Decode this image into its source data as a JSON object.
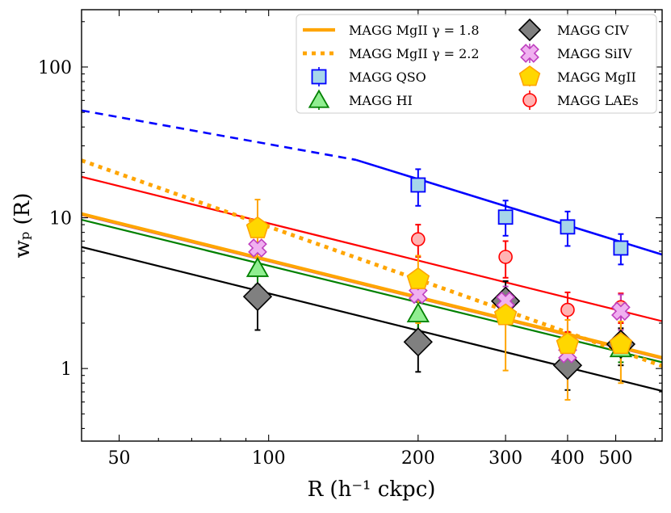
{
  "chart_data": {
    "type": "scatter",
    "xscale": "log",
    "yscale": "log",
    "xlim": [
      42,
      620
    ],
    "ylim": [
      0.33,
      240
    ],
    "xlabel": "R (h⁻¹ ckpc)",
    "ylabel": "wₚ (R)",
    "xticks": [
      {
        "value": 50,
        "label": "50"
      },
      {
        "value": 100,
        "label": "100"
      },
      {
        "value": 200,
        "label": "200"
      },
      {
        "value": 300,
        "label": "300"
      },
      {
        "value": 400,
        "label": "400"
      },
      {
        "value": 500,
        "label": "500"
      }
    ],
    "yticks": [
      {
        "value": 1,
        "label": "1"
      },
      {
        "value": 10,
        "label": "10"
      },
      {
        "value": 100,
        "label": "100"
      }
    ],
    "fit_lines": [
      {
        "name": "MAGG QSO fit",
        "color": "#0000ff",
        "width": 2.6,
        "segments": [
          {
            "x": [
              42,
              150
            ],
            "y": [
              51.5,
              24.2
            ],
            "dash": "10 7"
          },
          {
            "x": [
              150,
              620
            ],
            "y": [
              24.2,
              5.7
            ],
            "dash": ""
          }
        ]
      },
      {
        "name": "MAGG LAEs fit",
        "color": "#ff0000",
        "width": 2.2,
        "segments": [
          {
            "x": [
              42,
              620
            ],
            "y": [
              18.7,
              2.06
            ],
            "dash": ""
          }
        ]
      },
      {
        "name": "MAGG SiIV fit",
        "color": "#bf40bf",
        "width": 2.0,
        "segments": [
          {
            "x": [
              42,
              620
            ],
            "y": [
              10.4,
              1.16
            ],
            "dash": ""
          }
        ]
      },
      {
        "name": "MAGG HI fit",
        "color": "#008000",
        "width": 2.2,
        "segments": [
          {
            "x": [
              42,
              620
            ],
            "y": [
              9.7,
              1.1
            ],
            "dash": ""
          }
        ]
      },
      {
        "name": "MAGG CIV fit",
        "color": "#000000",
        "width": 2.2,
        "segments": [
          {
            "x": [
              42,
              620
            ],
            "y": [
              6.4,
              0.71
            ],
            "dash": ""
          }
        ]
      },
      {
        "name": "MAGG MgII γ = 1.8",
        "color": "#ffa500",
        "width": 4.2,
        "segments": [
          {
            "x": [
              42,
              620
            ],
            "y": [
              10.6,
              1.18
            ],
            "dash": ""
          }
        ]
      },
      {
        "name": "MAGG MgII γ = 2.2",
        "color": "#ffa500",
        "width": 4.8,
        "segments": [
          {
            "x": [
              42,
              620
            ],
            "y": [
              24.0,
              1.04
            ],
            "dash": "5 6"
          }
        ]
      }
    ],
    "series": [
      {
        "name": "MAGG QSO",
        "marker": "square",
        "fill": "#a6d6ea",
        "stroke": "#0000ff",
        "errcolor": "#0000ff",
        "size": 17,
        "points": [
          {
            "x": 200,
            "y": 16.5,
            "ylo": 12.0,
            "yhi": 21.0
          },
          {
            "x": 300,
            "y": 10.1,
            "ylo": 7.6,
            "yhi": 13.0
          },
          {
            "x": 400,
            "y": 8.7,
            "ylo": 6.5,
            "yhi": 11.0
          },
          {
            "x": 512,
            "y": 6.3,
            "ylo": 4.9,
            "yhi": 7.8
          }
        ]
      },
      {
        "name": "MAGG LAEs",
        "marker": "circle",
        "fill": "#ffb3b3",
        "stroke": "#ff0000",
        "errcolor": "#ff0000",
        "size": 16,
        "points": [
          {
            "x": 200,
            "y": 7.2,
            "ylo": 5.5,
            "yhi": 9.0
          },
          {
            "x": 300,
            "y": 5.5,
            "ylo": 4.0,
            "yhi": 7.0
          },
          {
            "x": 400,
            "y": 2.45,
            "ylo": 1.75,
            "yhi": 3.2
          },
          {
            "x": 512,
            "y": 2.55,
            "ylo": 2.0,
            "yhi": 3.15
          }
        ]
      },
      {
        "name": "MAGG CIV",
        "marker": "diamond",
        "fill": "#808080",
        "stroke": "#000000",
        "errcolor": "#000000",
        "size": 34,
        "points": [
          {
            "x": 95,
            "y": 3.0,
            "ylo": 1.8,
            "yhi": 4.2
          },
          {
            "x": 200,
            "y": 1.5,
            "ylo": 0.95,
            "yhi": 2.1
          },
          {
            "x": 300,
            "y": 2.8,
            "ylo": 2.0,
            "yhi": 3.8
          },
          {
            "x": 400,
            "y": 1.05,
            "ylo": 0.72,
            "yhi": 1.4
          },
          {
            "x": 512,
            "y": 1.45,
            "ylo": 1.05,
            "yhi": 1.85
          }
        ]
      },
      {
        "name": "MAGG HI",
        "marker": "triangle",
        "fill": "#90ee90",
        "stroke": "#008000",
        "errcolor": "#008000",
        "size": 28,
        "points": [
          {
            "x": 95,
            "y": 4.6,
            "ylo": 3.6,
            "yhi": 5.8
          },
          {
            "x": 200,
            "y": 2.3,
            "ylo": 1.8,
            "yhi": 2.9
          },
          {
            "x": 512,
            "y": 1.35,
            "ylo": 1.1,
            "yhi": 1.6
          }
        ]
      },
      {
        "name": "MAGG SiIV",
        "marker": "cross",
        "fill": "#f0b0f0",
        "stroke": "#bf40bf",
        "errcolor": "#bf40bf",
        "size": 22,
        "points": [
          {
            "x": 95,
            "y": 6.3,
            "ylo": 5.0,
            "yhi": 7.8
          },
          {
            "x": 200,
            "y": 3.1,
            "ylo": 2.4,
            "yhi": 3.9
          },
          {
            "x": 300,
            "y": 2.8,
            "ylo": 2.2,
            "yhi": 3.5
          },
          {
            "x": 400,
            "y": 1.25,
            "ylo": 0.9,
            "yhi": 1.6
          },
          {
            "x": 512,
            "y": 2.4,
            "ylo": 1.8,
            "yhi": 3.1
          }
        ]
      },
      {
        "name": "MAGG MgII",
        "marker": "pentagon",
        "fill": "#ffd700",
        "stroke": "#ffa500",
        "errcolor": "#ffa500",
        "size": 28,
        "points": [
          {
            "x": 95,
            "y": 8.5,
            "ylo": 4.8,
            "yhi": 13.2
          },
          {
            "x": 200,
            "y": 3.9,
            "ylo": 2.0,
            "yhi": 5.6
          },
          {
            "x": 300,
            "y": 2.25,
            "ylo": 0.97,
            "yhi": 3.3
          },
          {
            "x": 400,
            "y": 1.45,
            "ylo": 0.62,
            "yhi": 2.1
          },
          {
            "x": 512,
            "y": 1.45,
            "ylo": 0.8,
            "yhi": 2.05
          }
        ]
      }
    ],
    "legend": {
      "placement": "top-right",
      "entries": [
        {
          "label": "MAGG MgII γ = 1.8",
          "kind": "line",
          "color": "#ffa500",
          "dash": ""
        },
        {
          "label": "MAGG MgII γ = 2.2",
          "kind": "line",
          "color": "#ffa500",
          "dash": "5 6"
        },
        {
          "label": "MAGG QSO",
          "kind": "marker",
          "series": 0
        },
        {
          "label": "MAGG HI",
          "kind": "marker",
          "series": 3
        },
        {
          "label": "MAGG CIV",
          "kind": "marker",
          "series": 2
        },
        {
          "label": "MAGG SiIV",
          "kind": "marker",
          "series": 4
        },
        {
          "label": "MAGG MgII",
          "kind": "marker",
          "series": 5
        },
        {
          "label": "MAGG LAEs",
          "kind": "marker",
          "series": 1
        }
      ]
    }
  }
}
